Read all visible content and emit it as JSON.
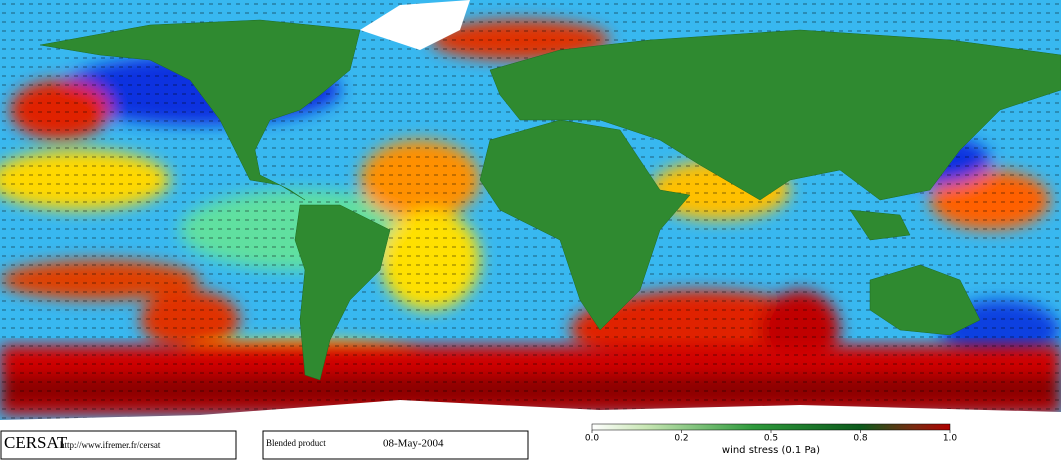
{
  "header": {
    "logo": "CERSAT",
    "url": "http://www.ifremer.fr/cersat",
    "product": "Blended product",
    "date": "08-May-2004"
  },
  "colorbar": {
    "label": "wind stress (0.1 Pa)",
    "ticks": [
      {
        "value": 0,
        "label": "0.0"
      },
      0.2,
      0.5,
      0.8,
      {
        "value": 1,
        "label": "1.0"
      }
    ]
  }
}
